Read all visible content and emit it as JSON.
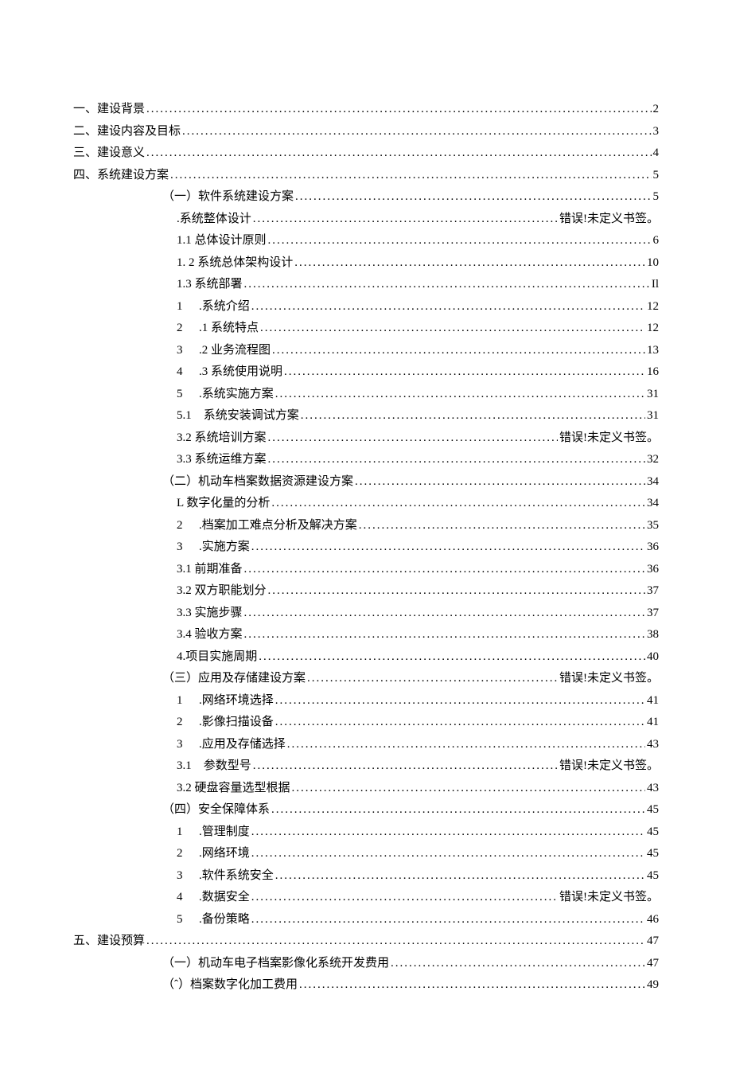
{
  "toc": [
    {
      "level": "lv0",
      "title": "一、建设背景",
      "page": "2"
    },
    {
      "level": "lv0",
      "title": "二、建设内容及目标",
      "page": "3"
    },
    {
      "level": "lv0",
      "title": "三、建设意义",
      "page": "4"
    },
    {
      "level": "lv0",
      "title": "四、系统建设方案",
      "page": "5"
    },
    {
      "level": "lv1",
      "title": "（一）软件系统建设方案",
      "page": "5"
    },
    {
      "level": "lv2",
      "title": ".系统整体设计",
      "page": "错误!未定义书签。"
    },
    {
      "level": "lv2",
      "title": "1.1 总体设计原则",
      "page": "6"
    },
    {
      "level": "lv2",
      "title": "1. 2 系统总体架构设计",
      "page": "10"
    },
    {
      "level": "lv2",
      "title": "1.3 系统部署",
      "page": "Il"
    },
    {
      "level": "lv2b",
      "num": "1",
      "title": ".系统介绍",
      "page": "12"
    },
    {
      "level": "lv2b",
      "num": "2",
      "title": ".1 系统特点",
      "page": "12"
    },
    {
      "level": "lv2b",
      "num": "3",
      "title": ".2 业务流程图",
      "page": "13"
    },
    {
      "level": "lv2b",
      "num": "4",
      "title": ".3 系统使用说明",
      "page": "16"
    },
    {
      "level": "lv2b",
      "num": "5",
      "title": ".系统实施方案",
      "page": "31"
    },
    {
      "level": "lv2",
      "title": "5.1　系统安装调试方案",
      "page": "31"
    },
    {
      "level": "lv2",
      "title": "3.2 系统培训方案",
      "page": "错误!未定义书签。"
    },
    {
      "level": "lv2",
      "title": "3.3 系统运维方案",
      "page": "32"
    },
    {
      "level": "lv1",
      "title": "（二）机动车档案数据资源建设方案",
      "page": "34"
    },
    {
      "level": "lv2",
      "title": "L 数字化量的分析",
      "page": "34"
    },
    {
      "level": "lv2b",
      "num": "2",
      "title": ".档案加工难点分析及解决方案",
      "page": "35"
    },
    {
      "level": "lv2b",
      "num": "3",
      "title": ".实施方案",
      "page": "36"
    },
    {
      "level": "lv2",
      "title": "3.1 前期准备",
      "page": "36"
    },
    {
      "level": "lv2",
      "title": "3.2 双方职能划分",
      "page": "37"
    },
    {
      "level": "lv2",
      "title": "3.3 实施步骤",
      "page": "37"
    },
    {
      "level": "lv2",
      "title": "3.4 验收方案",
      "page": "38"
    },
    {
      "level": "lv2",
      "title": "4.项目实施周期",
      "page": "40"
    },
    {
      "level": "lv1",
      "title": "（三）应用及存储建设方案",
      "page": "错误!未定义书签。"
    },
    {
      "level": "lv2b",
      "num": "1",
      "title": ".网络环境选择",
      "page": "41"
    },
    {
      "level": "lv2b",
      "num": "2",
      "title": ".影像扫描设备",
      "page": "41"
    },
    {
      "level": "lv2b",
      "num": "3",
      "title": ".应用及存储选择",
      "page": "43"
    },
    {
      "level": "lv2",
      "title": "3.1　参数型号",
      "page": "错误!未定义书签。"
    },
    {
      "level": "lv2",
      "title": "3.2 硬盘容量选型根据",
      "page": "43"
    },
    {
      "level": "lv1",
      "title": "（四）安全保障体系",
      "page": "45"
    },
    {
      "level": "lv2b",
      "num": "1",
      "title": ".管理制度",
      "page": "45"
    },
    {
      "level": "lv2b",
      "num": "2",
      "title": ".网络环境",
      "page": "45"
    },
    {
      "level": "lv2b",
      "num": "3",
      "title": ".软件系统安全",
      "page": "45"
    },
    {
      "level": "lv2b",
      "num": "4",
      "title": ".数据安全",
      "page": "错误!未定义书签。"
    },
    {
      "level": "lv2b",
      "num": "5",
      "title": ".备份策略",
      "page": "46"
    },
    {
      "level": "lv0",
      "title": "五、建设预算",
      "page": "47"
    },
    {
      "level": "lv1",
      "title": "（一）机动车电子档案影像化系统开发费用",
      "page": "47"
    },
    {
      "level": "lv1",
      "title": "（ˆ）档案数字化加工费用",
      "page": "49"
    }
  ]
}
